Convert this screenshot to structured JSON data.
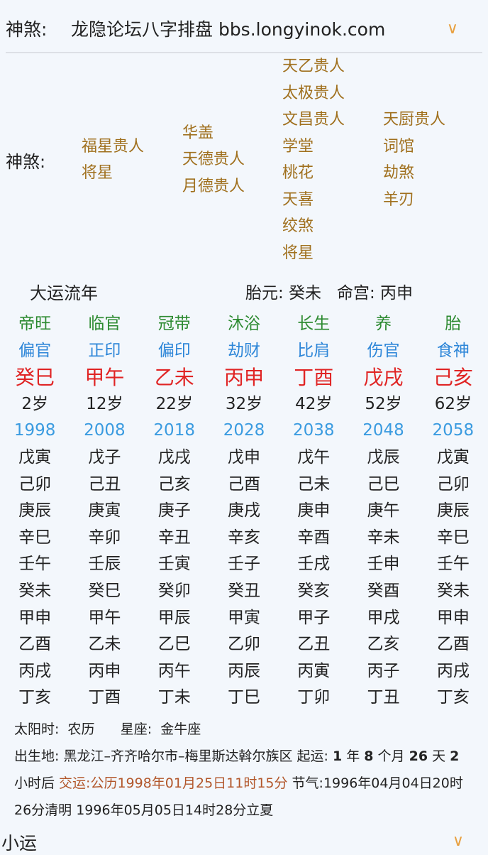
{
  "header": {
    "label": "神煞:",
    "title": "龙隐论坛八字排盘 bbs.longyinok.com"
  },
  "shensha": {
    "label": "神煞:",
    "columns": [
      [
        "福星贵人",
        "将星"
      ],
      [
        "华盖",
        "天德贵人",
        "月德贵人"
      ],
      [
        "天乙贵人",
        "太极贵人",
        "文昌贵人",
        "学堂",
        "桃花",
        "天喜",
        "绞煞",
        "将星"
      ],
      [
        "天厨贵人",
        "词馆",
        "劫煞",
        "羊刃"
      ]
    ]
  },
  "dayun": {
    "title": "大运流年",
    "taiyuan": "胎元:  癸未",
    "minggong": "命宫:  丙申",
    "columns": [
      {
        "stage": "帝旺",
        "god": "偏官",
        "pillar": "癸巳",
        "age": "2岁",
        "year": "1998",
        "years": [
          "戊寅",
          "己卯",
          "庚辰",
          "辛巳",
          "壬午",
          "癸未",
          "甲申",
          "乙酉",
          "丙戌",
          "丁亥"
        ]
      },
      {
        "stage": "临官",
        "god": "正印",
        "pillar": "甲午",
        "age": "12岁",
        "year": "2008",
        "years": [
          "戊子",
          "己丑",
          "庚寅",
          "辛卯",
          "壬辰",
          "癸巳",
          "甲午",
          "乙未",
          "丙申",
          "丁酉"
        ]
      },
      {
        "stage": "冠带",
        "god": "偏印",
        "pillar": "乙未",
        "age": "22岁",
        "year": "2018",
        "years": [
          "戊戌",
          "己亥",
          "庚子",
          "辛丑",
          "壬寅",
          "癸卯",
          "甲辰",
          "乙巳",
          "丙午",
          "丁未"
        ]
      },
      {
        "stage": "沐浴",
        "god": "劫财",
        "pillar": "丙申",
        "age": "32岁",
        "year": "2028",
        "years": [
          "戊申",
          "己酉",
          "庚戌",
          "辛亥",
          "壬子",
          "癸丑",
          "甲寅",
          "乙卯",
          "丙辰",
          "丁巳"
        ]
      },
      {
        "stage": "长生",
        "god": "比肩",
        "pillar": "丁酉",
        "age": "42岁",
        "year": "2038",
        "years": [
          "戊午",
          "己未",
          "庚申",
          "辛酉",
          "壬戌",
          "癸亥",
          "甲子",
          "乙丑",
          "丙寅",
          "丁卯"
        ]
      },
      {
        "stage": "养",
        "god": "伤官",
        "pillar": "戊戌",
        "age": "52岁",
        "year": "2048",
        "years": [
          "戊辰",
          "己巳",
          "庚午",
          "辛未",
          "壬申",
          "癸酉",
          "甲戌",
          "乙亥",
          "丙子",
          "丁丑"
        ]
      },
      {
        "stage": "胎",
        "god": "食神",
        "pillar": "己亥",
        "age": "62岁",
        "year": "2058",
        "years": [
          "戊寅",
          "己卯",
          "庚辰",
          "辛巳",
          "壬午",
          "癸未",
          "甲申",
          "乙酉",
          "丙戌",
          "丁亥"
        ]
      }
    ]
  },
  "info": {
    "line1": "太阳时:  农历      星座:  金牛座",
    "birth": "出生地:  黑龙江–齐齐哈尔市–梅里斯达斡尔族区 起运: ",
    "qy1": "1",
    "t1": " 年 ",
    "qy2": "8",
    "t2": " 个月 ",
    "qy3": "26",
    "t3": " 天 ",
    "qy4": "2",
    "t4": " 小时后 ",
    "jiaoyun": "交运:公历1998年01月25日11时15分",
    "jieqi": " 节气:1996年04月04日20时26分清明 1996年05月05日14时28分立夏"
  },
  "xiaoyun": {
    "title": "小运"
  },
  "colors": {
    "stage": "#2c8a30",
    "god": "#2d86d8",
    "pillar": "#e02424",
    "year": "#3a9be0",
    "shensha": "#a0701e",
    "accent": "#e8a040"
  }
}
